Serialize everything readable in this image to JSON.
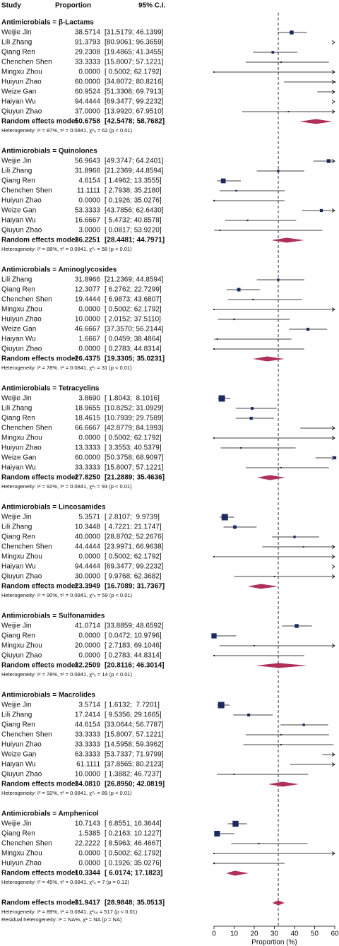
{
  "chart_data": {
    "type": "forest",
    "columns": [
      "Study",
      "Proportion",
      "95% C.I."
    ],
    "xlabel": "Proportion (%)",
    "xlim": [
      0,
      60
    ],
    "xticks": [
      0,
      10,
      20,
      30,
      40,
      50,
      60
    ],
    "square_color": "#1c2a5e",
    "diamond_color": "#b0305a",
    "groups": [
      {
        "title": "Antimicrobials = β-Lactams",
        "studies": [
          {
            "name": "Weijie Jin",
            "value": 38.5714,
            "value_label": "38.5714",
            "ci": [
              31.5179,
              46.1399
            ],
            "ci_label": "[31.5179; 46.1399]"
          },
          {
            "name": "Lili Zhang",
            "value": 91.3793,
            "value_label": "91.3793",
            "ci": [
              80.9061,
              96.3659
            ],
            "ci_label": "[80.9061; 96.3659]"
          },
          {
            "name": "Qiang Ren",
            "value": 29.2308,
            "value_label": "29.2308",
            "ci": [
              19.4865,
              41.3455
            ],
            "ci_label": "[19.4865; 41.3455]"
          },
          {
            "name": "Chenchen Shen",
            "value": 33.3333,
            "value_label": "33.3333",
            "ci": [
              15.8007,
              57.1221
            ],
            "ci_label": "[15.8007; 57.1221]"
          },
          {
            "name": "Mingxu Zhou",
            "value": 0,
            "value_label": "0.0000",
            "ci": [
              0.5002,
              62.1792
            ],
            "ci_label": "[ 0.5002; 62.1792]"
          },
          {
            "name": "Huiyun Zhao",
            "value": 60,
            "value_label": "60.0000",
            "ci": [
              34.8072,
              80.8216
            ],
            "ci_label": "[34.8072; 80.8216]"
          },
          {
            "name": "Weize Gan",
            "value": 60.9524,
            "value_label": "60.9524",
            "ci": [
              51.3308,
              69.7913
            ],
            "ci_label": "[51.3308; 69.7913]"
          },
          {
            "name": "Haiyan Wu",
            "value": 94.4444,
            "value_label": "94.4444",
            "ci": [
              69.3477,
              99.2232
            ],
            "ci_label": "[69.3477; 99.2232]"
          },
          {
            "name": "Qiuyun Zhao",
            "value": 37,
            "value_label": "37.0000",
            "ci": [
              13.992,
              67.951
            ],
            "ci_label": "[13.9920; 67.9510]"
          }
        ],
        "summary": {
          "name": "Random effects model",
          "value": 50.6758,
          "value_label": "50.6758",
          "ci": [
            42.5478,
            58.7682
          ],
          "ci_label": "[42.5478; 58.7682]"
        },
        "heterogeneity": "Heterogeneity: I² = 87%, τ² = 0.0841, χ²₈ = 62 (p < 0.01)"
      },
      {
        "title": "Antimicrobials = Quinolones",
        "studies": [
          {
            "name": "Weijie Jin",
            "value": 56.9643,
            "value_label": "56.9643",
            "ci": [
              49.3747,
              64.2401
            ],
            "ci_label": "[49.3747; 64.2401]"
          },
          {
            "name": "Lili Zhang",
            "value": 31.8966,
            "value_label": "31.8966",
            "ci": [
              21.2369,
              44.8594
            ],
            "ci_label": "[21.2369; 44.8594]"
          },
          {
            "name": "Qiang Ren",
            "value": 4.6154,
            "value_label": "4.6154",
            "ci": [
              1.4962,
              13.3555
            ],
            "ci_label": "[ 1.4962; 13.3555]"
          },
          {
            "name": "Chenchen Shen",
            "value": 11.1111,
            "value_label": "11.1111",
            "ci": [
              2.7938,
              35.218
            ],
            "ci_label": "[ 2.7938; 35.2180]"
          },
          {
            "name": "Huiyun Zhao",
            "value": 0,
            "value_label": "0.0000",
            "ci": [
              0.1926,
              35.0276
            ],
            "ci_label": "[ 0.1926; 35.0276]"
          },
          {
            "name": "Weize Gan",
            "value": 53.3333,
            "value_label": "53.3333",
            "ci": [
              43.7856,
              62.643
            ],
            "ci_label": "[43.7856; 62.6430]"
          },
          {
            "name": "Haiyan Wu",
            "value": 16.6667,
            "value_label": "16.6667",
            "ci": [
              5.4732,
              40.8578
            ],
            "ci_label": "[ 5.4732; 40.8578]"
          },
          {
            "name": "Qiuyun Zhao",
            "value": 3,
            "value_label": "3.0000",
            "ci": [
              0.0817,
              53.922
            ],
            "ci_label": "[ 0.0817; 53.9220]"
          }
        ],
        "summary": {
          "name": "Random effects model",
          "value": 36.2251,
          "value_label": "36.2251",
          "ci": [
            28.4481,
            44.7971
          ],
          "ci_label": "[28.4481; 44.7971]"
        },
        "heterogeneity": "Heterogeneity: I² = 88%, τ² = 0.0841, χ²₇ = 58 (p < 0.01)"
      },
      {
        "title": "Antimicrobials = Aminoglycosides",
        "studies": [
          {
            "name": "Lili Zhang",
            "value": 31.8966,
            "value_label": "31.8966",
            "ci": [
              21.2369,
              44.8594
            ],
            "ci_label": "[21.2369; 44.8594]"
          },
          {
            "name": "Qiang Ren",
            "value": 12.3077,
            "value_label": "12.3077",
            "ci": [
              6.2762,
              22.7299
            ],
            "ci_label": "[ 6.2762; 22.7299]"
          },
          {
            "name": "Chenchen Shen",
            "value": 19.4444,
            "value_label": "19.4444",
            "ci": [
              6.9873,
              43.6807
            ],
            "ci_label": "[ 6.9873; 43.6807]"
          },
          {
            "name": "Mingxu Zhou",
            "value": 0,
            "value_label": "0.0000",
            "ci": [
              0.5002,
              62.1792
            ],
            "ci_label": "[ 0.5002; 62.1792]"
          },
          {
            "name": "Huiyun Zhao",
            "value": 10,
            "value_label": "10.0000",
            "ci": [
              2.0152,
              37.511
            ],
            "ci_label": "[ 2.0152; 37.5110]"
          },
          {
            "name": "Weize Gan",
            "value": 46.6667,
            "value_label": "46.6667",
            "ci": [
              37.357,
              56.2144
            ],
            "ci_label": "[37.3570; 56.2144]"
          },
          {
            "name": "Haiyan Wu",
            "value": 1.6667,
            "value_label": "1.6667",
            "ci": [
              0.0459,
              38.4864
            ],
            "ci_label": "[ 0.0459; 38.4864]"
          },
          {
            "name": "Qiuyun Zhao",
            "value": 0,
            "value_label": "0.0000",
            "ci": [
              0.2783,
              44.8314
            ],
            "ci_label": "[ 0.2783; 44.8314]"
          }
        ],
        "summary": {
          "name": "Random effects model",
          "value": 26.4375,
          "value_label": "26.4375",
          "ci": [
            19.3305,
            35.0231
          ],
          "ci_label": "[19.3305; 35.0231]"
        },
        "heterogeneity": "Heterogeneity: I² = 78%, τ² = 0.0841, χ²₇ = 31 (p < 0.01)"
      },
      {
        "title": "Antimicrobials = Tetracyclins",
        "studies": [
          {
            "name": "Weijie Jin",
            "value": 3.869,
            "value_label": "3.8690",
            "ci": [
              1.8043,
              8.1016
            ],
            "ci_label": "[ 1.8043;  8.1016]"
          },
          {
            "name": "Lili Zhang",
            "value": 18.9655,
            "value_label": "18.9655",
            "ci": [
              10.8252,
              31.0929
            ],
            "ci_label": "[10.8252; 31.0929]"
          },
          {
            "name": "Qiang Ren",
            "value": 18.4615,
            "value_label": "18.4615",
            "ci": [
              10.7939,
              29.7589
            ],
            "ci_label": "[10.7939; 29.7589]"
          },
          {
            "name": "Chenchen Shen",
            "value": 66.6667,
            "value_label": "66.6667",
            "ci": [
              42.8779,
              84.1993
            ],
            "ci_label": "[42.8779; 84.1993]"
          },
          {
            "name": "Mingxu Zhou",
            "value": 0,
            "value_label": "0.0000",
            "ci": [
              0.5002,
              62.1792
            ],
            "ci_label": "[ 0.5002; 62.1792]"
          },
          {
            "name": "Huiyun Zhao",
            "value": 13.3333,
            "value_label": "13.3333",
            "ci": [
              3.3553,
              40.5379
            ],
            "ci_label": "[ 3.3553; 40.5379]"
          },
          {
            "name": "Weize Gan",
            "value": 60,
            "value_label": "60.0000",
            "ci": [
              50.3758,
              68.9097
            ],
            "ci_label": "[50.3758; 68.9097]"
          },
          {
            "name": "Haiyan Wu",
            "value": 33.3333,
            "value_label": "33.3333",
            "ci": [
              15.8007,
              57.1221
            ],
            "ci_label": "[15.8007; 57.1221]"
          }
        ],
        "summary": {
          "name": "Random effects model",
          "value": 27.825,
          "value_label": "27.8250",
          "ci": [
            21.2889,
            35.4636
          ],
          "ci_label": "[21.2889; 35.4636]"
        },
        "heterogeneity": "Heterogeneity: I² = 92%, τ² = 0.0841, χ²₇ = 93 (p < 0.01)"
      },
      {
        "title": "Antimicrobials = Lincosamides",
        "studies": [
          {
            "name": "Weijie Jin",
            "value": 5.3571,
            "value_label": "5.3571",
            "ci": [
              2.8107,
              9.9739
            ],
            "ci_label": "[ 2.8107;  9.9739]"
          },
          {
            "name": "Lili Zhang",
            "value": 10.3448,
            "value_label": "10.3448",
            "ci": [
              4.7221,
              21.1747
            ],
            "ci_label": "[ 4.7221; 21.1747]"
          },
          {
            "name": "Qiang Ren",
            "value": 40,
            "value_label": "40.0000",
            "ci": [
              28.8702,
              52.2676
            ],
            "ci_label": "[28.8702; 52.2676]"
          },
          {
            "name": "Chenchen Shen",
            "value": 44.4444,
            "value_label": "44.4444",
            "ci": [
              23.9971,
              66.9638
            ],
            "ci_label": "[23.9971; 66.9638]"
          },
          {
            "name": "Mingxu Zhou",
            "value": 0,
            "value_label": "0.0000",
            "ci": [
              0.5002,
              62.1792
            ],
            "ci_label": "[ 0.5002; 62.1792]"
          },
          {
            "name": "Haiyan Wu",
            "value": 94.4444,
            "value_label": "94.4444",
            "ci": [
              69.3477,
              99.2232
            ],
            "ci_label": "[69.3477; 99.2232]"
          },
          {
            "name": "Qiuyun Zhao",
            "value": 30,
            "value_label": "30.0000",
            "ci": [
              9.9768,
              62.3682
            ],
            "ci_label": "[ 9.9768; 62.3682]"
          }
        ],
        "summary": {
          "name": "Random effects model",
          "value": 23.3949,
          "value_label": "23.3949",
          "ci": [
            16.7089,
            31.7367
          ],
          "ci_label": "[16.7089; 31.7367]"
        },
        "heterogeneity": "Heterogeneity: I² = 90%, τ² = 0.0841, χ²₆ = 59 (p < 0.01)"
      },
      {
        "title": "Antimicrobials = Sulfonamides",
        "studies": [
          {
            "name": "Weijie Jin",
            "value": 41.0714,
            "value_label": "41.0714",
            "ci": [
              33.8859,
              48.6592
            ],
            "ci_label": "[33.8859; 48.6592]"
          },
          {
            "name": "Qiang Ren",
            "value": 0,
            "value_label": "0.0000",
            "ci": [
              0.0472,
              10.9796
            ],
            "ci_label": "[ 0.0472; 10.9796]"
          },
          {
            "name": "Mingxu Zhou",
            "value": 20,
            "value_label": "20.0000",
            "ci": [
              2.7183,
              69.1046
            ],
            "ci_label": "[ 2.7183; 69.1046]"
          },
          {
            "name": "Qiuyun Zhao",
            "value": 0,
            "value_label": "0.0000",
            "ci": [
              0.2783,
              44.8314
            ],
            "ci_label": "[ 0.2783; 44.8314]"
          }
        ],
        "summary": {
          "name": "Random effects model",
          "value": 32.2509,
          "value_label": "32.2509",
          "ci": [
            20.8116,
            46.3014
          ],
          "ci_label": "[20.8116; 46.3014]"
        },
        "heterogeneity": "Heterogeneity: I² = 78%, τ² = 0.0841, χ²₃ = 14 (p < 0.01)"
      },
      {
        "title": "Antimicrobials = Macrolides",
        "studies": [
          {
            "name": "Weijie Jin",
            "value": 3.5714,
            "value_label": "3.5714",
            "ci": [
              1.6132,
              7.7201
            ],
            "ci_label": "[ 1.6132;  7.7201]"
          },
          {
            "name": "Lili Zhang",
            "value": 17.2414,
            "value_label": "17.2414",
            "ci": [
              9.5356,
              29.1665
            ],
            "ci_label": "[ 9.5356; 29.1665]"
          },
          {
            "name": "Qiang Ren",
            "value": 44.6154,
            "value_label": "44.6154",
            "ci": [
              33.0644,
              56.7787
            ],
            "ci_label": "[33.0644; 56.7787]"
          },
          {
            "name": "Chenchen Shen",
            "value": 33.3333,
            "value_label": "33.3333",
            "ci": [
              15.8007,
              57.1221
            ],
            "ci_label": "[15.8007; 57.1221]"
          },
          {
            "name": "Huiyun Zhao",
            "value": 33.3333,
            "value_label": "33.3333",
            "ci": [
              14.5958,
              59.3962
            ],
            "ci_label": "[14.5958; 59.3962]"
          },
          {
            "name": "Weize Gan",
            "value": 63.3333,
            "value_label": "63.3333",
            "ci": [
              53.7337,
              71.9799
            ],
            "ci_label": "[53.7337; 71.9799]"
          },
          {
            "name": "Haiyan Wu",
            "value": 61.1111,
            "value_label": "61.1111",
            "ci": [
              37.8565,
              80.2123
            ],
            "ci_label": "[37.8565; 80.2123]"
          },
          {
            "name": "Qiuyun Zhao",
            "value": 10,
            "value_label": "10.0000",
            "ci": [
              1.3882,
              46.7237
            ],
            "ci_label": "[ 1.3882; 46.7237]"
          }
        ],
        "summary": {
          "name": "Random effects model",
          "value": 34.081,
          "value_label": "34.0810",
          "ci": [
            26.895,
            42.0819
          ],
          "ci_label": "[26.8950; 42.0819]"
        },
        "heterogeneity": "Heterogeneity: I² = 92%, τ² = 0.0841, χ²₇ = 89 (p < 0.01)"
      },
      {
        "title": "Antimicrobials = Amphenicol",
        "studies": [
          {
            "name": "Weijie Jin",
            "value": 10.7143,
            "value_label": "10.7143",
            "ci": [
              6.8551,
              16.3644
            ],
            "ci_label": "[ 6.8551; 16.3644]"
          },
          {
            "name": "Qiang Ren",
            "value": 1.5385,
            "value_label": "1.5385",
            "ci": [
              0.2163,
              10.1227
            ],
            "ci_label": "[ 0.2163; 10.1227]"
          },
          {
            "name": "Chenchen Shen",
            "value": 22.2222,
            "value_label": "22.2222",
            "ci": [
              8.5963,
              46.4667
            ],
            "ci_label": "[ 8.5963; 46.4667]"
          },
          {
            "name": "Mingxu Zhou",
            "value": 0,
            "value_label": "0.0000",
            "ci": [
              0.5002,
              62.1792
            ],
            "ci_label": "[ 0.5002; 62.1792]"
          },
          {
            "name": "Huiyun Zhao",
            "value": 0,
            "value_label": "0.0000",
            "ci": [
              0.1926,
              35.0276
            ],
            "ci_label": "[ 0.1926; 35.0276]"
          }
        ],
        "summary": {
          "name": "Random effects model",
          "value": 10.3344,
          "value_label": "10.3344",
          "ci": [
            6.0174,
            17.1823
          ],
          "ci_label": "[ 6.0174; 17.1823]"
        },
        "heterogeneity": "Heterogeneity: I² = 45%, τ² = 0.0841, χ²₄ = 7 (p = 0.12)"
      }
    ],
    "overall": {
      "name": "Random effects model",
      "value": 31.9417,
      "value_label": "31.9417",
      "ci": [
        28.9848,
        35.0513
      ],
      "ci_label": "[28.9848; 35.0513]"
    },
    "overall_heterogeneity": "Heterogeneity: I² = 89%, τ² = 0.0841, χ²₅₀ = 517 (p < 0.01)",
    "residual_heterogeneity": "Residual heterogeneity: I² = NA%, χ² = NA (p = NA)"
  }
}
